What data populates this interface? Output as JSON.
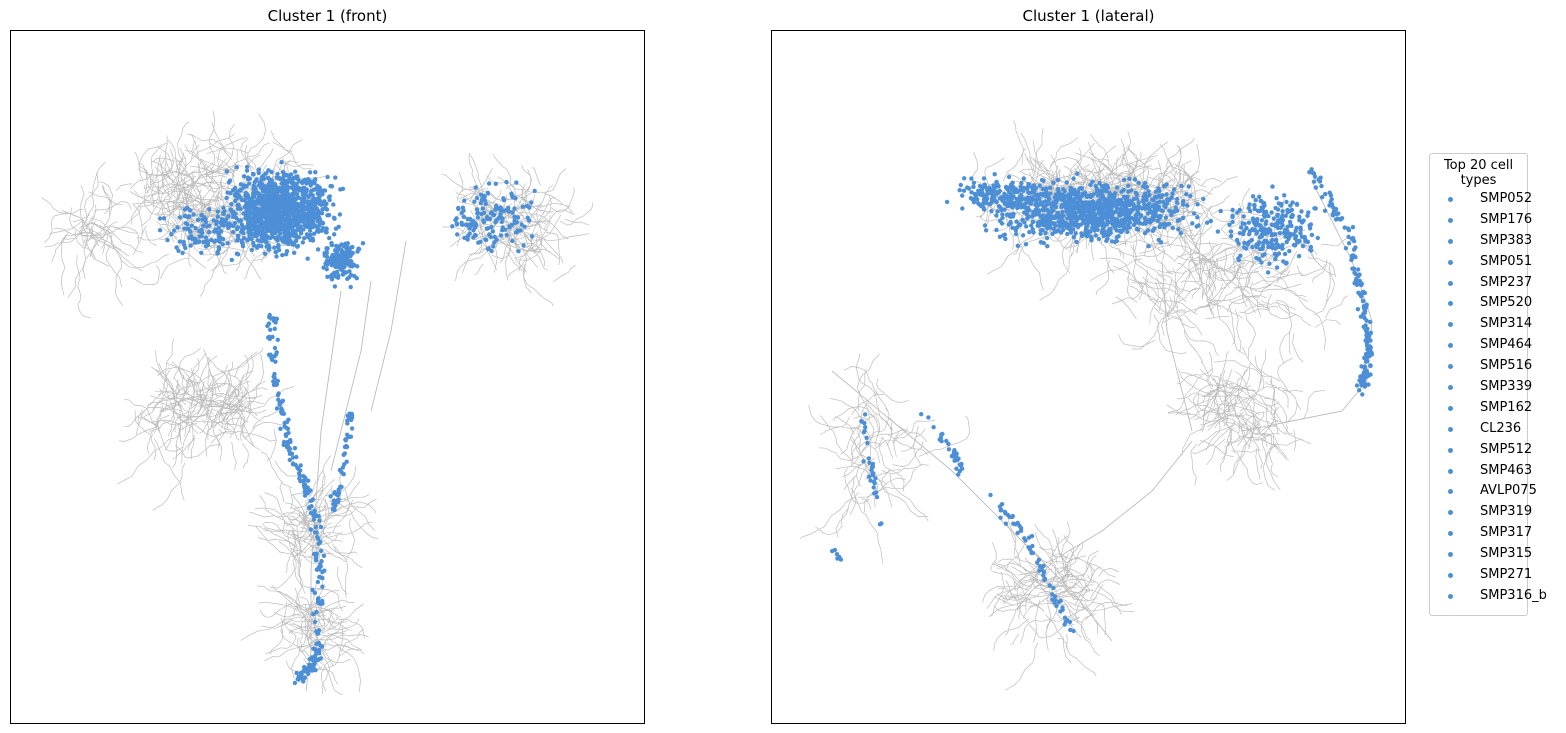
{
  "panels": [
    {
      "title": "Cluster 1 (front)",
      "view": "front"
    },
    {
      "title": "Cluster 1 (lateral)",
      "view": "lateral"
    }
  ],
  "colors": {
    "neurite": "#bdbdbd",
    "synapse": "#4d8fd6"
  },
  "legend": {
    "title": "Top 20 cell types",
    "items": [
      "SMP052",
      "SMP176",
      "SMP383",
      "SMP051",
      "SMP237",
      "SMP520",
      "SMP314",
      "SMP464",
      "SMP516",
      "SMP339",
      "SMP162",
      "CL236",
      "SMP512",
      "SMP463",
      "AVLP075",
      "SMP319",
      "SMP317",
      "SMP315",
      "SMP271",
      "SMP316_b"
    ]
  }
}
